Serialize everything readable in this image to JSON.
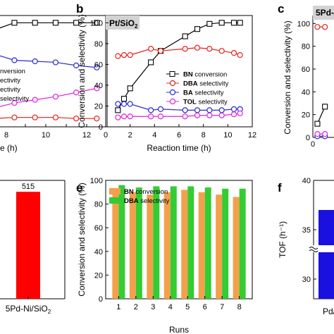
{
  "panels": {
    "a": {
      "letter": "",
      "legend_tail": [
        "nversion",
        "ectivity",
        "ectivity",
        "selectivity"
      ],
      "xticks": [
        "8",
        "10",
        "12"
      ],
      "xlabel_tail": "e (h)",
      "chart_data": {
        "type": "line",
        "x": [
          7,
          8,
          9,
          10,
          11,
          12
        ],
        "series": [
          {
            "name": "BN conversion",
            "color": "#000000",
            "marker": "square",
            "values": [
              93,
              100,
              100,
              100,
              100,
              100
            ]
          },
          {
            "name": "DBA selectivity",
            "color": "#e8201a",
            "marker": "circle",
            "values": [
              8,
              9,
              9,
              9,
              8,
              8
            ]
          },
          {
            "name": "BA selectivity",
            "color": "#2a2ad6",
            "marker": "circle",
            "values": [
              70,
              64,
              63,
              62,
              59,
              57
            ]
          },
          {
            "name": "TOL selectivity",
            "color": "#e020e0",
            "marker": "circle",
            "values": [
              18,
              23,
              26,
              29,
              33,
              37
            ]
          }
        ],
        "xlim": [
          7.3,
          12.5
        ],
        "ylim": [
          0,
          107
        ]
      }
    },
    "b": {
      "letter": "b",
      "tag": "Pt/SiO2",
      "ylabel": "Conversion and selectivity (%)",
      "xlabel": "Reaction time (h)",
      "xticks": [
        "0",
        "2",
        "4",
        "6",
        "8",
        "10",
        "12"
      ],
      "yticks": [
        "0",
        "20",
        "40",
        "60",
        "80",
        "100"
      ],
      "chart_data": {
        "type": "line",
        "x": [
          1,
          1.5,
          2,
          3.7,
          4.5,
          6.5,
          7.5,
          8.5,
          9.5,
          10.5,
          11
        ],
        "series": [
          {
            "name": "BN conversion",
            "color": "#000000",
            "marker": "square",
            "values": [
              16,
              27,
              37,
              62,
              73,
              87,
              94,
              99,
              100,
              100,
              100
            ]
          },
          {
            "name": "DBA selectivity",
            "color": "#e8201a",
            "marker": "circle",
            "values": [
              68,
              69,
              69,
              75,
              73,
              75,
              76,
              75,
              73,
              71,
              69
            ]
          },
          {
            "name": "BA selectivity",
            "color": "#2a2ad6",
            "marker": "circle",
            "values": [
              22,
              22,
              22,
              16,
              17,
              16,
              16,
              16,
              16,
              17,
              17
            ]
          },
          {
            "name": "TOL selectivity",
            "color": "#e020e0",
            "marker": "circle",
            "values": [
              9,
              10,
              10,
              10,
              10,
              10,
              11,
              11,
              11,
              12,
              13
            ]
          }
        ],
        "xlim": [
          0,
          12
        ],
        "ylim": [
          0,
          107
        ]
      }
    },
    "c": {
      "letter": "c",
      "tag": "5Pd-N",
      "ylabel": "Conversion and selectivity (%)",
      "yticks": [
        "0",
        "20",
        "40",
        "60",
        "80",
        "100"
      ],
      "xtick_label": "0",
      "chart_data": {
        "type": "line",
        "x": [
          1,
          2.5
        ],
        "series": [
          {
            "name": "BN conversion",
            "color": "#000000",
            "marker": "square",
            "values": [
              12,
              27
            ]
          },
          {
            "name": "DBA selectivity",
            "color": "#e8201a",
            "marker": "circle",
            "values": [
              97,
              97
            ]
          },
          {
            "name": "BA selectivity",
            "color": "#2a2ad6",
            "marker": "circle",
            "values": [
              1,
              1
            ]
          },
          {
            "name": "TOL selectivity",
            "color": "#e020e0",
            "marker": "circle",
            "values": [
              3,
              3
            ]
          }
        ],
        "xlim": [
          0,
          5
        ],
        "ylim": [
          0,
          107
        ]
      }
    },
    "d": {
      "chart_data": {
        "type": "bar",
        "categories": [
          "5Pd-Ni/SiO2"
        ],
        "values": [
          515
        ],
        "data_labels": [
          "515"
        ],
        "color": "#ff0000",
        "ylim": [
          0,
          570
        ]
      }
    },
    "e": {
      "letter": "e",
      "ylabel": "Conversion and selectivity (%)",
      "xlabel": "Runs",
      "yticks": [
        "0",
        "20",
        "40",
        "60",
        "80",
        "100"
      ],
      "chart_data": {
        "type": "bar",
        "categories": [
          "1",
          "2",
          "3",
          "4",
          "5",
          "6",
          "7",
          "8"
        ],
        "series": [
          {
            "name": "BN conversion",
            "color": "#f4a04a",
            "values": [
              92,
              90,
              88,
              90,
              92,
              90,
              88,
              86
            ]
          },
          {
            "name": "DBA selectivity",
            "color": "#33cc33",
            "values": [
              96,
              94,
              95,
              95,
              95,
              94,
              93,
              93
            ]
          }
        ],
        "ylim": [
          0,
          100
        ]
      }
    },
    "f": {
      "letter": "f",
      "ylabel": "TOF (h⁻¹)",
      "yticks": [
        "30",
        "35",
        "40"
      ],
      "xtick_label": "Pd/",
      "chart_data": {
        "type": "bar",
        "categories": [
          "Pd/"
        ],
        "values": [
          37
        ],
        "color": "#1a10e0",
        "ylim": [
          28,
          40
        ],
        "axis_break": true
      }
    }
  }
}
